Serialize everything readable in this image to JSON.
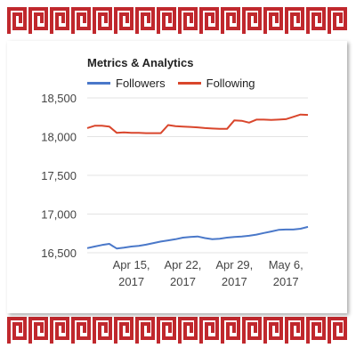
{
  "colors": {
    "border": "#c0282d",
    "followers": "#4a78c9",
    "following": "#d9462c",
    "grid": "#e3e3e3"
  },
  "chart_data": {
    "type": "line",
    "title": "Metrics & Analytics",
    "legend_position": "top-left",
    "grid": true,
    "ylim": [
      16500,
      18500
    ],
    "y_ticks": [
      "16,500",
      "17,000",
      "17,500",
      "18,000",
      "18,500"
    ],
    "x_ticks": [
      {
        "line1": "Apr 15,",
        "line2": "2017"
      },
      {
        "line1": "Apr 22,",
        "line2": "2017"
      },
      {
        "line1": "Apr 29,",
        "line2": "2017"
      },
      {
        "line1": "May 6,",
        "line2": "2017"
      }
    ],
    "x": [
      "2017-04-09",
      "2017-04-10",
      "2017-04-11",
      "2017-04-12",
      "2017-04-13",
      "2017-04-14",
      "2017-04-15",
      "2017-04-16",
      "2017-04-17",
      "2017-04-18",
      "2017-04-19",
      "2017-04-20",
      "2017-04-21",
      "2017-04-22",
      "2017-04-23",
      "2017-04-24",
      "2017-04-25",
      "2017-04-26",
      "2017-04-27",
      "2017-04-28",
      "2017-04-29",
      "2017-04-30",
      "2017-05-01",
      "2017-05-02",
      "2017-05-03",
      "2017-05-04",
      "2017-05-05",
      "2017-05-06",
      "2017-05-07",
      "2017-05-08",
      "2017-05-09"
    ],
    "series": [
      {
        "name": "Followers",
        "values": [
          16560,
          16580,
          16600,
          16615,
          16555,
          16565,
          16580,
          16590,
          16605,
          16625,
          16645,
          16660,
          16675,
          16695,
          16705,
          16710,
          16690,
          16675,
          16680,
          16695,
          16705,
          16710,
          16720,
          16735,
          16755,
          16775,
          16795,
          16800,
          16800,
          16810,
          16835
        ]
      },
      {
        "name": "Following",
        "values": [
          18110,
          18140,
          18140,
          18130,
          18050,
          18055,
          18050,
          18050,
          18045,
          18045,
          18045,
          18150,
          18135,
          18130,
          18125,
          18120,
          18110,
          18105,
          18100,
          18100,
          18210,
          18205,
          18180,
          18220,
          18220,
          18215,
          18220,
          18225,
          18255,
          18285,
          18280
        ]
      }
    ]
  }
}
